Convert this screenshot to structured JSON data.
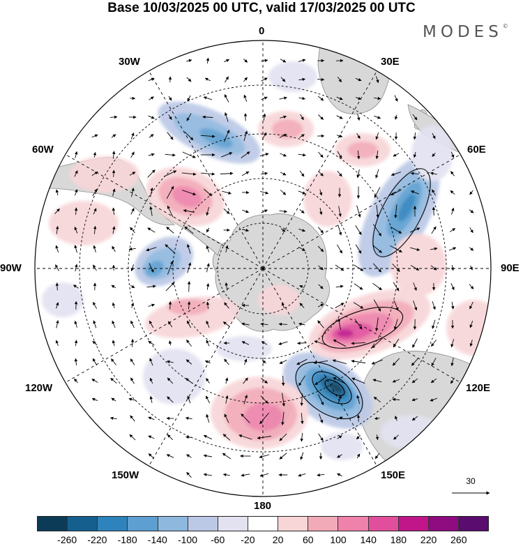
{
  "title": "Base 10/03/2025 00 UTC, valid 17/03/2025 00 UTC",
  "brand": {
    "name": "MODES",
    "mark": "©"
  },
  "projection": "south-polar-stereographic",
  "longitude_labels": [
    {
      "id": "0",
      "text": "0"
    },
    {
      "id": "30e",
      "text": "30E"
    },
    {
      "id": "60e",
      "text": "60E"
    },
    {
      "id": "90e",
      "text": "90E"
    },
    {
      "id": "120e",
      "text": "120E"
    },
    {
      "id": "150e",
      "text": "150E"
    },
    {
      "id": "180",
      "text": "180"
    },
    {
      "id": "150w",
      "text": "150W"
    },
    {
      "id": "120w",
      "text": "120W"
    },
    {
      "id": "90w",
      "text": "90W"
    },
    {
      "id": "60w",
      "text": "60W"
    },
    {
      "id": "30w",
      "text": "30W"
    }
  ],
  "reference_vector": {
    "value": "30"
  },
  "colorbar": {
    "ticks": [
      "-260",
      "-220",
      "-180",
      "-140",
      "-100",
      "-60",
      "-20",
      "20",
      "60",
      "100",
      "140",
      "180",
      "220",
      "260"
    ],
    "colors": [
      "#0b3b57",
      "#155f8e",
      "#2f83bd",
      "#5c9fd0",
      "#8fb8df",
      "#bcc9e6",
      "#e2e2f1",
      "#ffffff",
      "#f8d6d8",
      "#f2aab8",
      "#ee82aa",
      "#e14f9c",
      "#c0168a",
      "#8e0c80",
      "#5a0c6f"
    ]
  },
  "colors": {
    "land": "#d6d6d6",
    "coast": "#808080",
    "grid": "#000000"
  },
  "anomaly_features": [
    {
      "name": "negative-east-indian",
      "level": "-180"
    },
    {
      "name": "negative-south-tasman",
      "level": "-260"
    },
    {
      "name": "positive-south-indian",
      "level": "180"
    },
    {
      "name": "positive-ross-sea",
      "level": "140"
    },
    {
      "name": "positive-weddell",
      "level": "140"
    },
    {
      "name": "negative-south-atlantic",
      "level": "-140"
    },
    {
      "name": "negative-bellingshausen",
      "level": "-140"
    },
    {
      "name": "positive-antarctic-peninsula",
      "level": "100"
    }
  ]
}
